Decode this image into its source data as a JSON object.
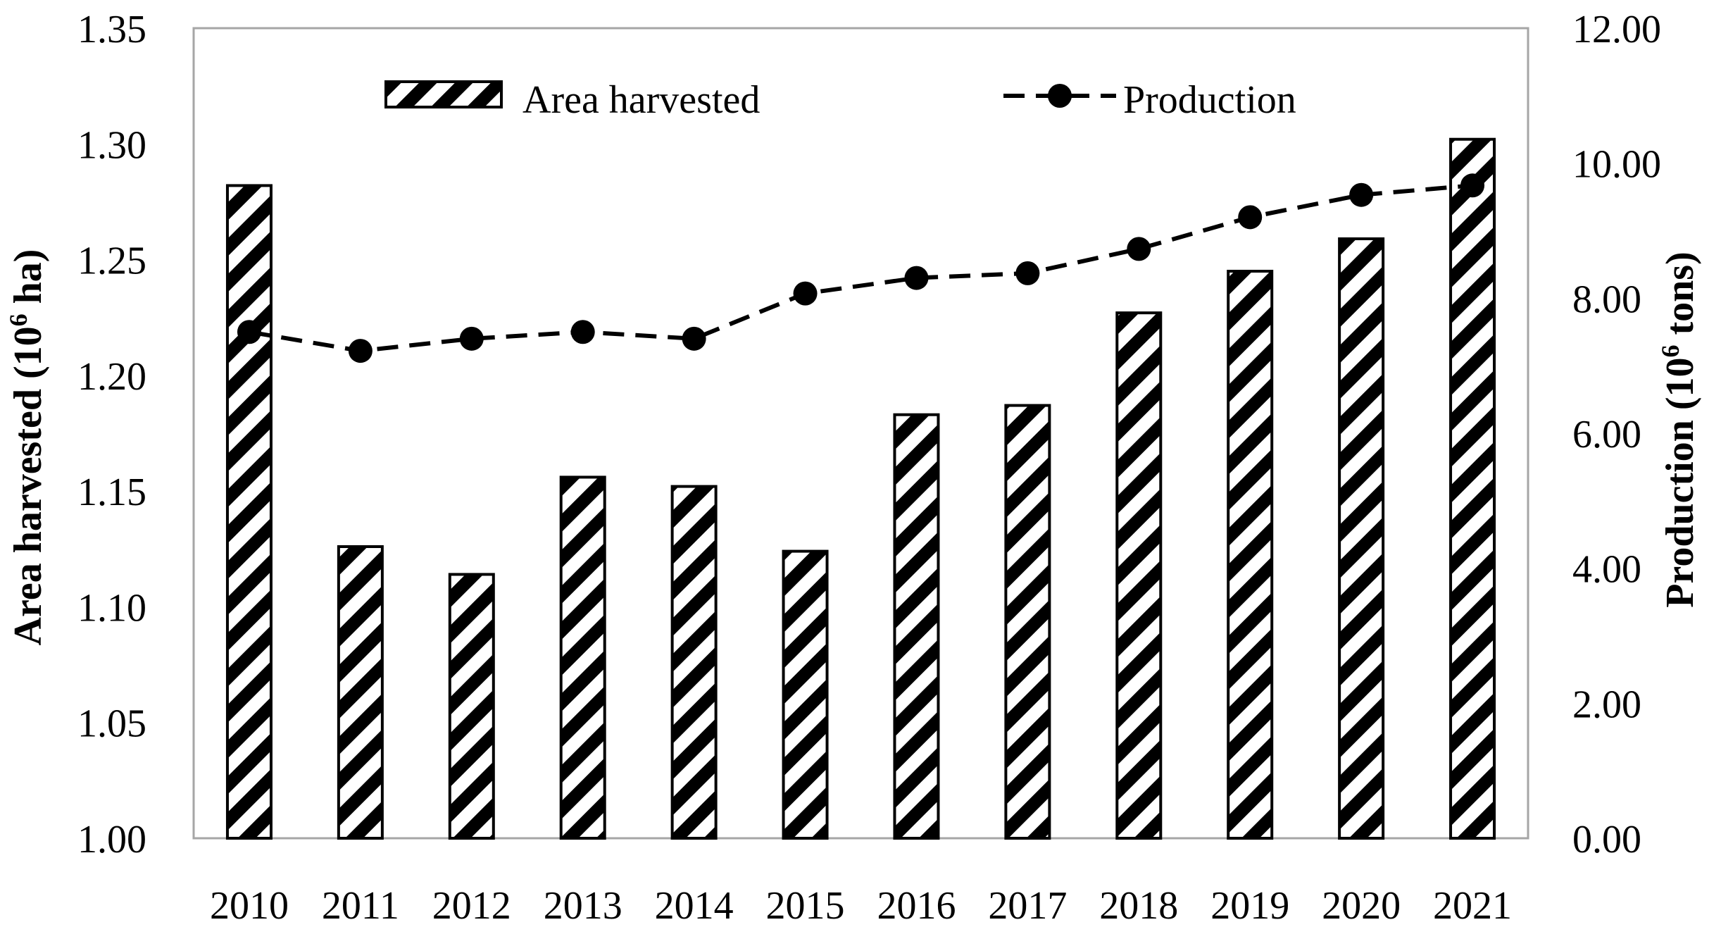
{
  "chart_data": {
    "type": "bar",
    "categories": [
      "2010",
      "2011",
      "2012",
      "2013",
      "2014",
      "2015",
      "2016",
      "2017",
      "2018",
      "2019",
      "2020",
      "2021"
    ],
    "series": [
      {
        "name": "Area harvested",
        "kind": "bar",
        "axis": "left",
        "values": [
          1.282,
          1.126,
          1.114,
          1.156,
          1.152,
          1.124,
          1.183,
          1.187,
          1.227,
          1.245,
          1.259,
          1.302
        ]
      },
      {
        "name": "Production",
        "kind": "line",
        "axis": "right",
        "values": [
          7.5,
          7.22,
          7.4,
          7.5,
          7.4,
          8.07,
          8.3,
          8.37,
          8.73,
          9.2,
          9.53,
          9.67
        ]
      }
    ],
    "yleft": {
      "label_main": "Area harvested (10",
      "label_sup": "6",
      "label_end": " ha)",
      "lim": [
        1.0,
        1.35
      ],
      "ticks": [
        "1.00",
        "1.05",
        "1.10",
        "1.15",
        "1.20",
        "1.25",
        "1.30",
        "1.35"
      ]
    },
    "yright": {
      "label_main": "Production (10",
      "label_sup": "6",
      "label_end": " tons)",
      "lim": [
        0,
        12
      ],
      "ticks": [
        "0.00",
        "2.00",
        "4.00",
        "6.00",
        "8.00",
        "10.00",
        "12.00"
      ]
    },
    "legend": {
      "placement": "top",
      "items": [
        "Area harvested",
        "Production"
      ]
    },
    "grid": false,
    "bar_pattern": "diagonal-stripes",
    "line_style": "dashed-with-circle-markers",
    "colors": {
      "ink": "#000000",
      "frame": "#a6a6a6",
      "background": "#ffffff"
    }
  }
}
